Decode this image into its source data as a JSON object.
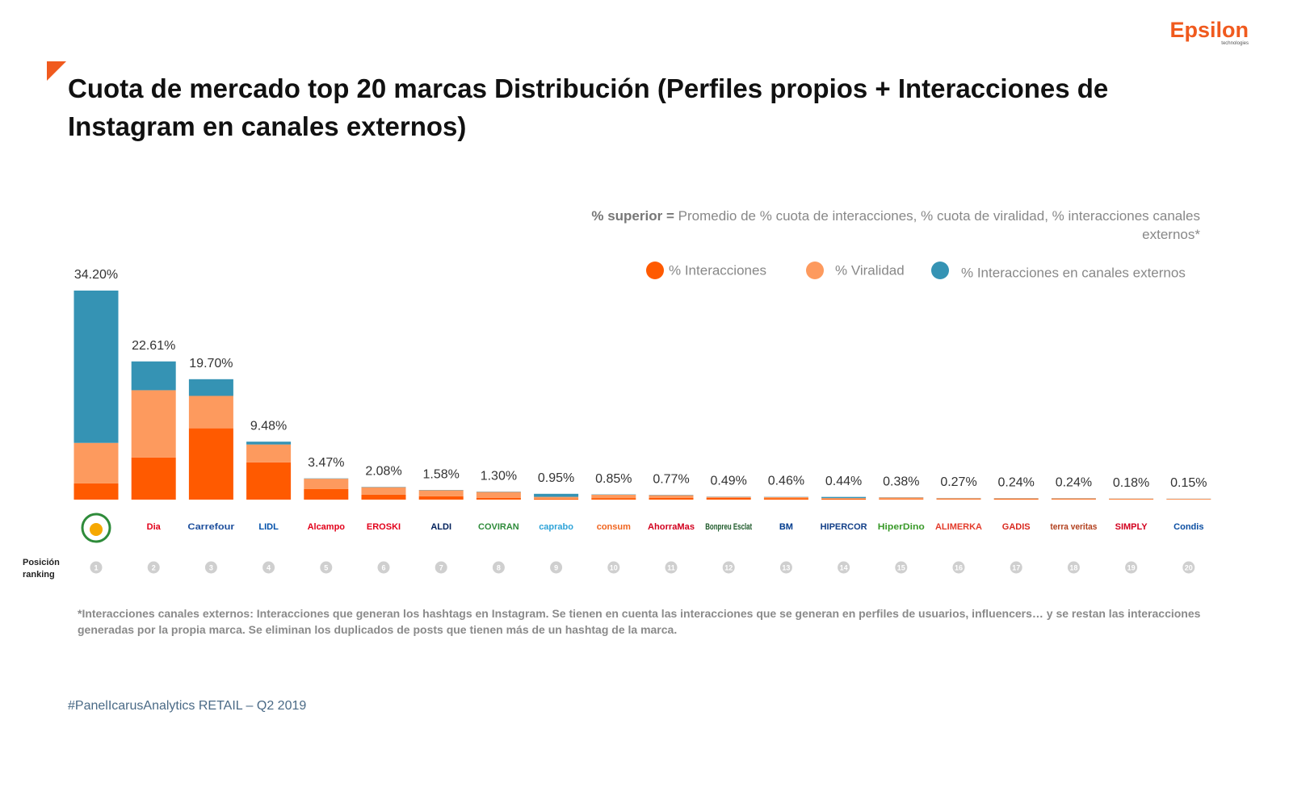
{
  "brand": {
    "name": "Epsilon",
    "tagline": "technologies"
  },
  "chart_data": {
    "type": "stacked-bar",
    "title": "Cuota de mercado top 20 marcas Distribución (Perfiles propios + Interacciones de Instagram en canales externos)",
    "note_bold": "% superior =",
    "note": "Promedio de % cuota de interacciones, % cuota de viralidad, % interacciones canales externos*",
    "categories": [
      null,
      "Dia",
      "Carrefour",
      "LIDL",
      "Alcampo",
      "EROSKI",
      "ALDI",
      "COVIRAN",
      "caprabo",
      "consum",
      "AhorraMas",
      "Bonpreu Esclat",
      "BM",
      "HIPERCOR",
      "HiperDino",
      "ALIMERKA",
      "GADIS",
      "terra veritas",
      "SIMPLY",
      "Condis"
    ],
    "category_colors": [
      "#2e8b3a",
      "#e2001a",
      "#1d4e9c",
      "#0050aa",
      "#e2001a",
      "#e2001a",
      "#00205b",
      "#2e8b3a",
      "#2ea3d8",
      "#f0641e",
      "#d2001e",
      "#1e5a2a",
      "#003b8e",
      "#123f88",
      "#3a9a2a",
      "#e33a2a",
      "#d9281e",
      "#b2401e",
      "#d2001e",
      "#0b4ea2"
    ],
    "series": [
      {
        "name": "% Interacciones",
        "color": "#ff5a00",
        "values": [
          2.65,
          6.9,
          11.67,
          6.1,
          1.72,
          0.8,
          0.55,
          0.3,
          0.15,
          0.25,
          0.3,
          0.3,
          0.2,
          0.15,
          0.1,
          0.1,
          0.12,
          0.1,
          0.08,
          0.05
        ]
      },
      {
        "name": "% Viralidad",
        "color": "#fd9a5e",
        "values": [
          6.63,
          11.0,
          5.3,
          2.92,
          1.7,
          1.23,
          0.98,
          0.95,
          0.3,
          0.55,
          0.42,
          0.15,
          0.22,
          0.1,
          0.24,
          0.14,
          0.09,
          0.11,
          0.08,
          0.08
        ]
      },
      {
        "name": "% Interacciones en canales externos",
        "color": "#3593b4",
        "values": [
          24.92,
          4.71,
          2.73,
          0.46,
          0.05,
          0.05,
          0.05,
          0.05,
          0.5,
          0.05,
          0.05,
          0.04,
          0.04,
          0.19,
          0.04,
          0.03,
          0.03,
          0.03,
          0.02,
          0.02
        ]
      }
    ],
    "totals": {
      "values": [
        34.2,
        22.61,
        19.7,
        9.48,
        3.47,
        2.08,
        1.58,
        1.3,
        0.95,
        0.85,
        0.77,
        0.49,
        0.46,
        0.44,
        0.38,
        0.27,
        0.24,
        0.24,
        0.18,
        0.15
      ],
      "value_labels": [
        "34.20%",
        "22.61%",
        "19.70%",
        "9.48%",
        "3.47%",
        "2.08%",
        "1.58%",
        "1.30%",
        "0.95%",
        "0.85%",
        "0.77%",
        "0.49%",
        "0.46%",
        "0.44%",
        "0.38%",
        "0.27%",
        "0.24%",
        "0.24%",
        "0.18%",
        "0.15%"
      ]
    },
    "ylim": [
      0,
      34.2
    ],
    "rank_label": "Posición ranking",
    "ranks": [
      1,
      2,
      3,
      4,
      5,
      6,
      7,
      8,
      9,
      10,
      11,
      12,
      13,
      14,
      15,
      16,
      17,
      18,
      19,
      20
    ],
    "footnote": "*Interacciones canales externos: Interacciones que generan los hashtags en Instagram. Se tienen en cuenta las interacciones que se generan en perfiles de usuarios, influencers… y se restan las interacciones generadas por la propia marca. Se eliminan los duplicados de posts que tienen más de un hashtag de la marca."
  },
  "footer": "#PanelIcarusAnalytics RETAIL – Q2 2019"
}
